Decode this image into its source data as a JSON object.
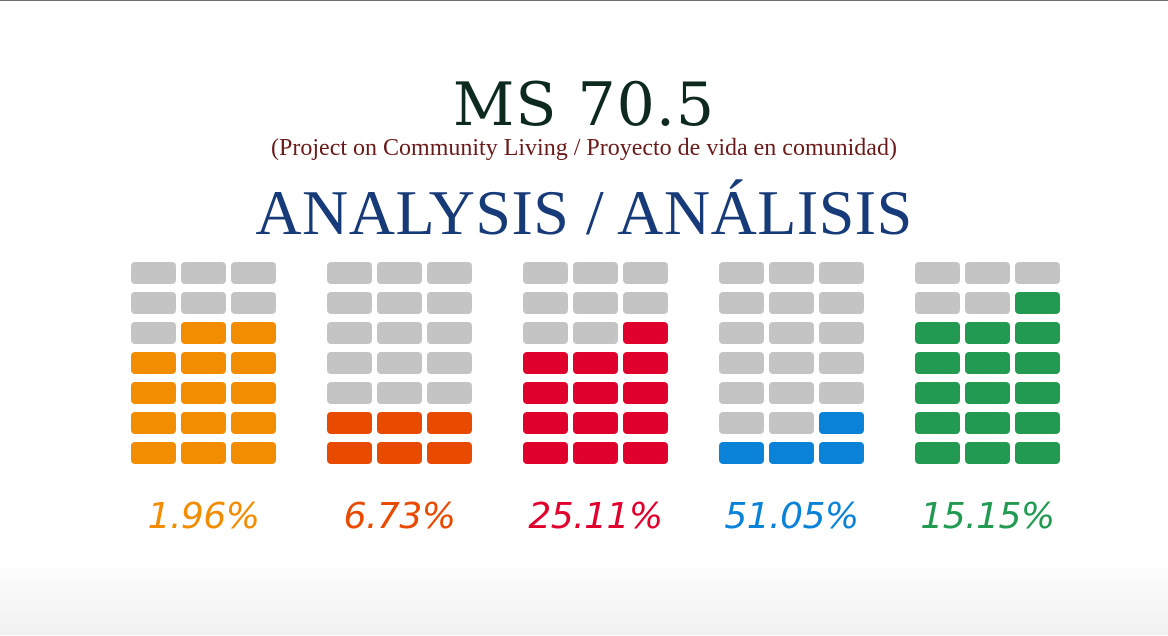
{
  "header": {
    "title": "MS 70.5",
    "subtitle": "(Project on Community Living / Proyecto de vida en comunidad)",
    "heading": "ANALYSIS / ANÁLISIS"
  },
  "colors": {
    "empty_cell": "#c4c4c4"
  },
  "chart_data": {
    "type": "waffle",
    "title": "ANALYSIS / ANÁLISIS",
    "grid_rows": 7,
    "grid_cols": 3,
    "series": [
      {
        "value_label": "1.96%",
        "value": 1.96,
        "filled_cells": 14,
        "color": "#f28c00"
      },
      {
        "value_label": "6.73%",
        "value": 6.73,
        "filled_cells": 6,
        "color": "#e84a00"
      },
      {
        "value_label": "25.11%",
        "value": 25.11,
        "filled_cells": 13,
        "color": "#e0002d"
      },
      {
        "value_label": "51.05%",
        "value": 51.05,
        "filled_cells": 4,
        "color": "#0a82d8"
      },
      {
        "value_label": "15.15%",
        "value": 15.15,
        "filled_cells": 16,
        "color": "#229a52"
      }
    ]
  }
}
